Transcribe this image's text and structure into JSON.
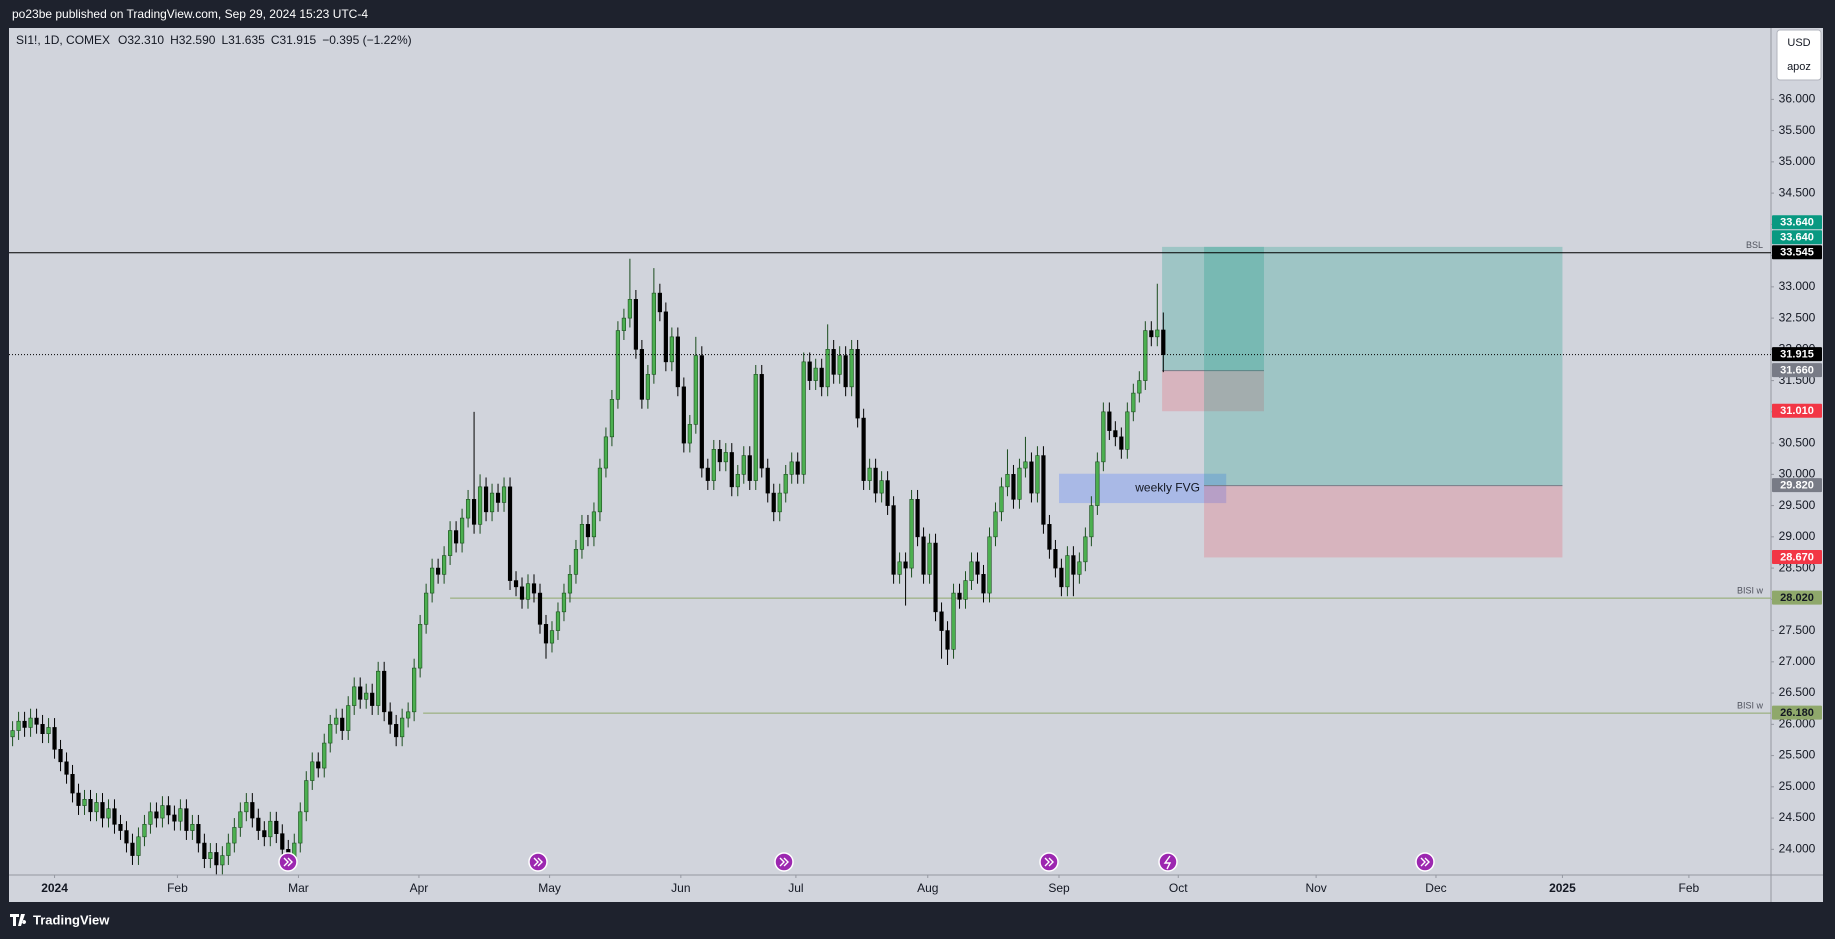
{
  "page": {
    "published": "po23be published on TradingView.com, Sep 29, 2024 15:23 UTC-4",
    "brand": "TradingView"
  },
  "chart_data": {
    "type": "candlestick",
    "legend_items": [
      "SI1!, 1D, COMEX",
      "O32.310",
      "H32.590",
      "L31.635",
      "C31.915",
      "−0.395 (−1.22%)"
    ],
    "currency": "USD",
    "unit_label": "apoz",
    "up_color": "#4caf50",
    "up_border": "#1b4d1e",
    "down_color": "#000000",
    "open": [
      25.8,
      25.9,
      26.05,
      25.95,
      26.1,
      26.0,
      25.85,
      25.95,
      25.6,
      25.4,
      25.2,
      24.9,
      24.7,
      24.8,
      24.6,
      24.75,
      24.5,
      24.65,
      24.4,
      24.3,
      24.1,
      23.9,
      24.2,
      24.4,
      24.6,
      24.5,
      24.7,
      24.55,
      24.45,
      24.65,
      24.3,
      24.4,
      24.1,
      23.85,
      23.95,
      23.75,
      23.9,
      24.1,
      24.35,
      24.6,
      24.75,
      24.5,
      24.3,
      24.2,
      24.45,
      24.25,
      24.0,
      23.85,
      24.1,
      24.6,
      25.1,
      25.4,
      25.3,
      25.7,
      26.0,
      26.1,
      25.9,
      26.3,
      26.6,
      26.4,
      26.5,
      26.3,
      26.85,
      26.2,
      26.0,
      25.8,
      26.1,
      26.2,
      26.9,
      27.6,
      28.1,
      28.5,
      28.4,
      28.7,
      29.1,
      28.9,
      29.3,
      29.6,
      29.2,
      29.8,
      29.4,
      29.7,
      29.55,
      29.8,
      28.3,
      28.2,
      28.0,
      28.25,
      28.1,
      27.6,
      27.3,
      27.5,
      27.8,
      28.1,
      28.4,
      28.8,
      29.2,
      29.0,
      29.4,
      30.1,
      30.6,
      31.2,
      32.3,
      32.5,
      32.8,
      32.0,
      31.2,
      31.6,
      32.9,
      32.6,
      31.8,
      32.2,
      31.4,
      30.5,
      30.8,
      31.9,
      30.1,
      29.9,
      30.4,
      30.2,
      30.35,
      29.8,
      30.0,
      30.3,
      29.9,
      31.6,
      30.1,
      29.7,
      29.4,
      29.7,
      30.0,
      30.2,
      30.0,
      31.8,
      31.5,
      31.7,
      31.4,
      32.0,
      31.6,
      31.9,
      31.4,
      32.0,
      30.9,
      29.9,
      30.1,
      29.7,
      29.9,
      29.5,
      28.4,
      28.6,
      28.5,
      29.6,
      29.0,
      28.4,
      28.9,
      27.8,
      27.5,
      27.2,
      28.1,
      28.0,
      28.3,
      28.6,
      28.4,
      28.1,
      29.0,
      29.4,
      29.8,
      30.0,
      29.6,
      30.1,
      30.2,
      29.7,
      30.3,
      29.2,
      28.8,
      28.5,
      28.2,
      28.7,
      28.4,
      28.6,
      29.0,
      29.5,
      30.2,
      31.0,
      30.7,
      30.6,
      30.4,
      31.0,
      31.3,
      31.5,
      32.3,
      32.2,
      32.31
    ],
    "high": [
      26.05,
      26.2,
      26.2,
      26.25,
      26.25,
      26.15,
      26.1,
      26.1,
      25.75,
      25.55,
      25.35,
      25.05,
      24.95,
      24.95,
      24.9,
      24.9,
      24.8,
      24.8,
      24.55,
      24.45,
      24.25,
      24.35,
      24.55,
      24.75,
      24.75,
      24.85,
      24.85,
      24.7,
      24.8,
      24.8,
      24.55,
      24.55,
      24.25,
      24.1,
      24.1,
      24.05,
      24.25,
      24.5,
      24.75,
      24.9,
      24.9,
      24.65,
      24.45,
      24.6,
      24.6,
      24.4,
      24.15,
      24.25,
      24.75,
      25.25,
      25.55,
      25.55,
      25.85,
      26.15,
      26.25,
      26.25,
      26.45,
      26.75,
      26.75,
      26.65,
      26.65,
      27.0,
      27.0,
      26.35,
      26.15,
      26.25,
      26.35,
      27.05,
      27.75,
      28.25,
      28.65,
      28.65,
      28.85,
      29.25,
      29.25,
      29.45,
      29.75,
      31.0,
      30.0,
      29.95,
      29.85,
      29.85,
      29.95,
      29.95,
      28.45,
      28.35,
      28.4,
      28.4,
      28.25,
      27.75,
      27.65,
      27.95,
      28.25,
      28.55,
      28.95,
      29.35,
      29.35,
      29.55,
      30.25,
      30.75,
      31.35,
      32.45,
      32.65,
      33.45,
      32.95,
      32.15,
      31.75,
      33.3,
      33.05,
      32.75,
      32.35,
      32.35,
      31.55,
      30.95,
      32.2,
      32.05,
      30.25,
      30.55,
      30.55,
      30.5,
      30.5,
      30.15,
      30.45,
      30.45,
      31.75,
      31.75,
      30.25,
      29.85,
      29.85,
      30.15,
      30.35,
      30.35,
      31.95,
      31.95,
      31.85,
      31.85,
      32.4,
      32.15,
      32.05,
      32.05,
      32.15,
      32.15,
      31.05,
      30.25,
      30.25,
      30.05,
      30.05,
      29.65,
      28.75,
      28.75,
      29.75,
      29.75,
      29.15,
      29.05,
      29.05,
      27.95,
      27.65,
      28.25,
      28.25,
      28.45,
      28.75,
      28.75,
      28.55,
      29.15,
      29.55,
      29.95,
      30.4,
      30.15,
      30.25,
      30.6,
      30.35,
      30.45,
      30.45,
      29.35,
      28.95,
      28.65,
      28.85,
      28.85,
      28.75,
      29.15,
      29.65,
      30.35,
      31.15,
      31.15,
      30.85,
      30.75,
      31.15,
      31.45,
      31.65,
      32.45,
      32.45,
      33.05,
      32.59
    ],
    "low": [
      25.65,
      25.75,
      25.8,
      25.8,
      25.85,
      25.7,
      25.7,
      25.45,
      25.25,
      25.05,
      24.75,
      24.55,
      24.55,
      24.45,
      24.45,
      24.35,
      24.35,
      24.25,
      24.15,
      23.95,
      23.75,
      23.75,
      24.05,
      24.25,
      24.35,
      24.35,
      24.4,
      24.3,
      24.3,
      24.15,
      24.15,
      23.95,
      23.7,
      23.7,
      23.6,
      23.6,
      23.75,
      23.95,
      24.2,
      24.45,
      24.35,
      24.15,
      24.05,
      24.05,
      24.1,
      23.85,
      23.7,
      23.7,
      23.95,
      24.45,
      24.95,
      25.15,
      25.15,
      25.55,
      25.85,
      25.75,
      25.75,
      26.15,
      26.25,
      26.25,
      26.15,
      26.15,
      26.05,
      25.85,
      25.65,
      25.65,
      25.95,
      26.05,
      26.75,
      27.45,
      27.95,
      28.25,
      28.25,
      28.55,
      28.75,
      28.75,
      29.15,
      29.05,
      29.05,
      29.25,
      29.25,
      29.4,
      29.4,
      28.15,
      28.05,
      27.85,
      27.85,
      27.95,
      27.45,
      27.05,
      27.15,
      27.35,
      27.65,
      27.95,
      28.25,
      28.65,
      28.85,
      28.85,
      29.25,
      29.95,
      30.45,
      31.05,
      32.15,
      32.35,
      31.85,
      31.05,
      31.05,
      31.45,
      32.45,
      31.65,
      31.65,
      31.25,
      30.35,
      30.35,
      30.65,
      29.95,
      29.75,
      29.75,
      30.05,
      30.05,
      29.65,
      29.65,
      29.85,
      29.75,
      29.75,
      29.95,
      29.55,
      29.25,
      29.25,
      29.55,
      29.85,
      29.85,
      29.85,
      31.35,
      31.35,
      31.25,
      31.25,
      31.45,
      31.45,
      31.25,
      31.25,
      30.75,
      29.75,
      29.75,
      29.55,
      29.55,
      29.35,
      28.25,
      28.25,
      27.9,
      28.35,
      28.85,
      28.25,
      28.25,
      27.65,
      27.05,
      26.95,
      27.05,
      27.85,
      27.85,
      28.15,
      28.25,
      27.95,
      27.95,
      28.85,
      29.25,
      29.65,
      29.45,
      29.45,
      29.95,
      29.55,
      29.55,
      29.05,
      28.65,
      28.35,
      28.05,
      28.05,
      28.05,
      28.25,
      28.45,
      28.85,
      29.35,
      30.05,
      30.55,
      30.45,
      30.25,
      30.25,
      30.85,
      31.15,
      31.35,
      32.05,
      32.05,
      31.635
    ],
    "close": [
      25.9,
      26.05,
      25.95,
      26.1,
      26.0,
      25.85,
      25.95,
      25.6,
      25.4,
      25.2,
      24.9,
      24.7,
      24.8,
      24.6,
      24.75,
      24.5,
      24.65,
      24.4,
      24.3,
      24.1,
      23.9,
      24.2,
      24.4,
      24.6,
      24.5,
      24.7,
      24.55,
      24.45,
      24.65,
      24.3,
      24.4,
      24.1,
      23.85,
      23.95,
      23.75,
      23.9,
      24.1,
      24.35,
      24.6,
      24.75,
      24.5,
      24.3,
      24.2,
      24.45,
      24.25,
      24.0,
      23.85,
      24.1,
      24.6,
      25.1,
      25.4,
      25.3,
      25.7,
      26.0,
      26.1,
      25.9,
      26.3,
      26.6,
      26.4,
      26.5,
      26.3,
      26.85,
      26.2,
      26.0,
      25.8,
      26.1,
      26.2,
      26.9,
      27.6,
      28.1,
      28.5,
      28.4,
      28.7,
      29.1,
      28.9,
      29.3,
      29.6,
      29.2,
      29.8,
      29.4,
      29.7,
      29.55,
      29.8,
      28.3,
      28.2,
      28.0,
      28.25,
      28.1,
      27.6,
      27.3,
      27.5,
      27.8,
      28.1,
      28.4,
      28.8,
      29.2,
      29.0,
      29.4,
      30.1,
      30.6,
      31.2,
      32.3,
      32.5,
      32.8,
      32.0,
      31.2,
      31.6,
      32.9,
      32.6,
      31.8,
      32.2,
      31.4,
      30.5,
      30.8,
      31.9,
      30.1,
      29.9,
      30.4,
      30.2,
      30.35,
      29.8,
      30.0,
      30.3,
      29.9,
      31.6,
      30.1,
      29.7,
      29.4,
      29.7,
      30.0,
      30.2,
      30.0,
      31.8,
      31.5,
      31.7,
      31.4,
      32.0,
      31.6,
      31.9,
      31.4,
      32.0,
      30.9,
      29.9,
      30.1,
      29.7,
      29.9,
      29.5,
      28.4,
      28.6,
      28.5,
      29.6,
      29.0,
      28.4,
      28.9,
      27.8,
      27.5,
      27.2,
      28.1,
      28.0,
      28.3,
      28.6,
      28.4,
      28.1,
      29.0,
      29.4,
      29.8,
      30.0,
      29.6,
      30.1,
      30.2,
      29.7,
      30.3,
      29.2,
      28.8,
      28.5,
      28.2,
      28.7,
      28.4,
      28.6,
      29.0,
      29.5,
      30.2,
      31.0,
      30.7,
      30.6,
      30.4,
      31.0,
      31.3,
      31.5,
      32.3,
      32.2,
      32.31,
      31.915
    ],
    "xlim": [
      -0.6,
      293.4
    ],
    "xticks": [
      {
        "value": 7,
        "label": "2024"
      },
      {
        "value": 27.5,
        "label": "Feb"
      },
      {
        "value": 47.7,
        "label": "Mar"
      },
      {
        "value": 67.8,
        "label": "Apr"
      },
      {
        "value": 89.6,
        "label": "May"
      },
      {
        "value": 111.5,
        "label": "Jun"
      },
      {
        "value": 130.7,
        "label": "Jul"
      },
      {
        "value": 152.7,
        "label": "Aug"
      },
      {
        "value": 174.6,
        "label": "Sep"
      },
      {
        "value": 194.5,
        "label": "Oct"
      },
      {
        "value": 217.5,
        "label": "Nov"
      },
      {
        "value": 237.5,
        "label": "Dec"
      },
      {
        "value": 258.6,
        "label": "2025"
      },
      {
        "value": 279.7,
        "label": "Feb"
      }
    ],
    "ylim": [
      23.589,
      37.142
    ],
    "yticks": [
      {
        "value": 24,
        "label": "24.000"
      },
      {
        "value": 24.5,
        "label": "24.500"
      },
      {
        "value": 25,
        "label": "25.000"
      },
      {
        "value": 25.5,
        "label": "25.500"
      },
      {
        "value": 26,
        "label": "26.000"
      },
      {
        "value": 26.5,
        "label": "26.500"
      },
      {
        "value": 27,
        "label": "27.000"
      },
      {
        "value": 27.5,
        "label": "27.500"
      },
      {
        "value": 28,
        "label": "28.000"
      },
      {
        "value": 28.5,
        "label": "28.500"
      },
      {
        "value": 29,
        "label": "29.000"
      },
      {
        "value": 29.5,
        "label": "29.500"
      },
      {
        "value": 30,
        "label": "30.000"
      },
      {
        "value": 30.5,
        "label": "30.500"
      },
      {
        "value": 31,
        "label": "31.000"
      },
      {
        "value": 31.5,
        "label": "31.500"
      },
      {
        "value": 32,
        "label": "32.000"
      },
      {
        "value": 32.5,
        "label": "32.500"
      },
      {
        "value": 33,
        "label": "33.000"
      },
      {
        "value": 33.5,
        "label": "33.500"
      },
      {
        "value": 34,
        "label": "34.000"
      },
      {
        "value": 34.5,
        "label": "34.500"
      },
      {
        "value": 35,
        "label": "35.000"
      },
      {
        "value": 35.5,
        "label": "35.500"
      },
      {
        "value": 36,
        "label": "36.000"
      }
    ],
    "grid": false,
    "lines": [
      {
        "label": "BSL",
        "level": {
          "value": 33.545,
          "label": "33.545"
        },
        "color": "#000000",
        "tag_text": "#ffffff"
      },
      {
        "label": "BISI w",
        "level": {
          "value": 28.02,
          "label": "28.020"
        },
        "color": "#8fa86b",
        "tag_text": "#131722"
      },
      {
        "label": "BISI w",
        "level": {
          "value": 26.18,
          "label": "26.180"
        },
        "color": "#8fa86b",
        "tag_text": "#131722"
      }
    ],
    "positions": [
      {
        "target": {
          "value": 33.64,
          "label": "33.640"
        },
        "entry": {
          "value": 31.66,
          "label": "31.660"
        },
        "stop": {
          "value": 31.01,
          "label": "31.010"
        }
      },
      {
        "target": {
          "value": 33.64,
          "label": "33.640"
        },
        "entry": {
          "value": 29.82,
          "label": "29.820"
        },
        "stop": {
          "value": 28.67,
          "label": "28.670"
        }
      }
    ],
    "position_style": {
      "target": "#089981",
      "entry": "#787b86",
      "stop": "#f23645",
      "profit_fill": "rgba(8,153,129,0.25)",
      "loss_fill": "rgba(242,54,69,0.2)"
    },
    "zones": [
      {
        "label": "weekly FVG",
        "top": 30.01,
        "bottom": 29.54,
        "color": "rgba(110,145,245,0.4)"
      }
    ],
    "current_color": "#000000"
  }
}
